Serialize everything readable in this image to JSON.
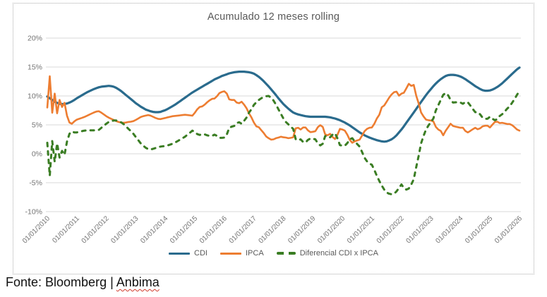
{
  "chart": {
    "title": "Acumulado 12 meses rolling"
  },
  "footer": {
    "prefix": "Fonte: Bloomberg | ",
    "flagged_word": "Anbima"
  },
  "colors": {
    "cdi": "#2A6B8D",
    "ipca": "#ED7D31",
    "diferencial": "#3A7D23",
    "gridline": "#D9D9D9",
    "axis_text": "#737373",
    "title_text": "#595959",
    "frame_dotted_border": "#ABABAB",
    "spellcheck_wavy": "#D03A2B"
  },
  "chart_data": {
    "type": "line",
    "title": "Acumulado 12 meses rolling",
    "xlabel": "",
    "ylabel": "",
    "ylim": [
      -10,
      20
    ],
    "grid": "horizontal",
    "legend_position": "bottom",
    "sampling": "monthly from 01/01/2010 to 01/01/2026",
    "y_tick_labels": [
      "20%",
      "15%",
      "10%",
      "5%",
      "0%",
      "-5%",
      "-10%"
    ],
    "y_tick_values": [
      20,
      15,
      10,
      5,
      0,
      -5,
      -10
    ],
    "x_tick_labels": [
      "01/01/2010",
      "01/01/2011",
      "01/01/2012",
      "01/01/2013",
      "01/01/2014",
      "01/01/2015",
      "01/01/2016",
      "01/01/2017",
      "01/01/2018",
      "01/01/2019",
      "01/01/2020",
      "01/01/2021",
      "01/01/2022",
      "01/01/2023",
      "01/01/2024",
      "01/01/2025",
      "01/01/2026"
    ],
    "series": [
      {
        "name": "CDI",
        "color": "#2A6B8D",
        "style": "solid",
        "values": [
          9.9,
          9.6,
          9.3,
          9.0,
          8.8,
          8.65,
          8.6,
          8.6,
          8.7,
          8.85,
          9.05,
          9.3,
          9.6,
          9.85,
          10.1,
          10.35,
          10.6,
          10.8,
          11.0,
          11.2,
          11.35,
          11.5,
          11.6,
          11.65,
          11.7,
          11.75,
          11.7,
          11.6,
          11.4,
          11.15,
          10.85,
          10.5,
          10.15,
          9.8,
          9.45,
          9.1,
          8.75,
          8.45,
          8.15,
          7.9,
          7.65,
          7.5,
          7.35,
          7.25,
          7.2,
          7.2,
          7.25,
          7.4,
          7.55,
          7.75,
          8.0,
          8.25,
          8.5,
          8.8,
          9.1,
          9.4,
          9.7,
          10.0,
          10.3,
          10.6,
          10.85,
          11.1,
          11.35,
          11.6,
          11.85,
          12.1,
          12.35,
          12.6,
          12.85,
          13.05,
          13.25,
          13.45,
          13.6,
          13.75,
          13.9,
          14.0,
          14.1,
          14.15,
          14.2,
          14.2,
          14.2,
          14.15,
          14.1,
          14.0,
          13.85,
          13.6,
          13.3,
          12.95,
          12.55,
          12.1,
          11.65,
          11.15,
          10.65,
          10.15,
          9.6,
          9.1,
          8.6,
          8.2,
          7.8,
          7.45,
          7.15,
          6.95,
          6.8,
          6.7,
          6.6,
          6.5,
          6.45,
          6.4,
          6.4,
          6.4,
          6.4,
          6.4,
          6.4,
          6.4,
          6.35,
          6.3,
          6.2,
          6.1,
          5.95,
          5.8,
          5.6,
          5.4,
          5.15,
          4.9,
          4.6,
          4.3,
          4.0,
          3.7,
          3.45,
          3.2,
          3.0,
          2.8,
          2.65,
          2.5,
          2.35,
          2.25,
          2.15,
          2.1,
          2.15,
          2.3,
          2.5,
          2.8,
          3.2,
          3.7,
          4.2,
          4.75,
          5.35,
          5.95,
          6.55,
          7.15,
          7.75,
          8.35,
          8.95,
          9.55,
          10.15,
          10.7,
          11.2,
          11.7,
          12.15,
          12.55,
          12.9,
          13.2,
          13.45,
          13.6,
          13.65,
          13.65,
          13.6,
          13.5,
          13.35,
          13.15,
          12.9,
          12.6,
          12.3,
          12.0,
          11.7,
          11.45,
          11.2,
          11.0,
          10.9,
          10.9,
          10.95,
          11.1,
          11.3,
          11.55,
          11.85,
          12.2,
          12.6,
          13.0,
          13.4,
          13.8,
          14.2,
          14.6,
          14.9
        ]
      },
      {
        "name": "IPCA",
        "color": "#ED7D31",
        "style": "solid",
        "values": [
          8.0,
          13.4,
          7.1,
          10.4,
          7.0,
          9.3,
          8.1,
          8.8,
          6.6,
          5.4,
          5.2,
          5.6,
          5.9,
          6.05,
          6.2,
          6.35,
          6.55,
          6.75,
          6.95,
          7.15,
          7.3,
          7.35,
          7.1,
          6.8,
          6.5,
          6.25,
          6.05,
          5.85,
          5.65,
          5.5,
          5.4,
          5.35,
          5.4,
          5.5,
          5.55,
          5.65,
          5.85,
          6.1,
          6.35,
          6.5,
          6.6,
          6.7,
          6.6,
          6.4,
          6.2,
          6.05,
          6.0,
          6.1,
          6.2,
          6.3,
          6.4,
          6.5,
          6.55,
          6.6,
          6.65,
          6.7,
          6.75,
          6.7,
          6.65,
          6.6,
          7.1,
          7.7,
          8.1,
          8.2,
          8.5,
          8.9,
          9.25,
          9.5,
          9.55,
          9.95,
          10.5,
          10.7,
          10.8,
          10.4,
          9.4,
          9.3,
          9.3,
          8.85,
          8.75,
          9.0,
          8.5,
          7.9,
          7.0,
          6.3,
          5.4,
          4.75,
          4.6,
          4.1,
          3.6,
          3.0,
          2.7,
          2.45,
          2.5,
          2.7,
          2.8,
          2.95,
          2.85,
          2.8,
          2.7,
          2.75,
          2.85,
          4.4,
          4.5,
          4.2,
          4.55,
          4.55,
          4.05,
          3.75,
          3.8,
          3.9,
          4.6,
          4.95,
          4.65,
          3.35,
          3.2,
          3.45,
          2.9,
          2.55,
          3.3,
          4.3,
          4.2,
          4.0,
          3.3,
          2.4,
          1.9,
          2.15,
          2.3,
          2.45,
          3.15,
          3.9,
          4.3,
          4.5,
          4.55,
          5.2,
          6.1,
          6.75,
          8.05,
          8.35,
          9.0,
          9.7,
          10.25,
          10.65,
          10.75,
          10.05,
          10.4,
          10.55,
          11.3,
          12.1,
          11.75,
          11.9,
          10.05,
          8.75,
          7.15,
          6.45,
          5.9,
          5.8,
          5.75,
          5.6,
          4.65,
          4.2,
          3.95,
          3.2,
          4.0,
          4.6,
          5.2,
          4.8,
          4.7,
          4.6,
          4.5,
          4.5,
          3.95,
          3.7,
          3.95,
          4.25,
          4.5,
          4.25,
          4.4,
          4.75,
          4.85,
          4.85,
          4.55,
          5.05,
          5.5,
          5.55,
          5.3,
          5.35,
          5.25,
          5.15,
          5.15,
          4.95,
          4.6,
          4.2,
          4.0
        ]
      },
      {
        "name": "Diferencial CDI x IPCA",
        "color": "#3A7D23",
        "style": "dashed",
        "values": [
          1.9,
          -3.8,
          2.2,
          -1.4,
          1.8,
          -0.65,
          0.5,
          -0.2,
          2.1,
          3.45,
          3.85,
          3.7,
          3.7,
          3.8,
          3.9,
          4.0,
          4.05,
          4.05,
          4.05,
          4.05,
          4.05,
          4.15,
          4.5,
          4.85,
          5.2,
          5.5,
          5.65,
          5.75,
          5.75,
          5.65,
          5.45,
          5.15,
          4.75,
          4.3,
          3.9,
          3.45,
          2.9,
          2.35,
          1.8,
          1.4,
          1.05,
          0.8,
          0.75,
          0.85,
          1.0,
          1.15,
          1.25,
          1.3,
          1.35,
          1.45,
          1.6,
          1.75,
          1.95,
          2.2,
          2.45,
          2.7,
          2.95,
          3.3,
          3.65,
          4.0,
          3.75,
          3.4,
          3.25,
          3.4,
          3.35,
          3.2,
          3.1,
          3.1,
          3.3,
          3.1,
          2.75,
          2.75,
          2.8,
          3.35,
          4.5,
          4.7,
          4.8,
          5.3,
          5.45,
          5.2,
          5.7,
          6.25,
          7.1,
          7.7,
          8.45,
          8.9,
          9.3,
          9.6,
          9.8,
          9.95,
          10.0,
          9.7,
          9.2,
          8.5,
          7.7,
          6.9,
          6.1,
          5.5,
          5.1,
          4.7,
          4.3,
          2.55,
          2.3,
          2.5,
          2.05,
          1.95,
          2.4,
          2.65,
          2.6,
          2.5,
          1.8,
          1.45,
          1.75,
          3.05,
          3.15,
          2.85,
          3.3,
          3.55,
          2.65,
          1.5,
          1.4,
          1.4,
          1.85,
          2.5,
          2.7,
          2.15,
          1.7,
          1.25,
          0.3,
          -0.7,
          -1.3,
          -1.7,
          -1.9,
          -2.8,
          -3.8,
          -4.7,
          -5.5,
          -6.2,
          -6.7,
          -6.9,
          -7.0,
          -6.9,
          -6.5,
          -5.9,
          -5.3,
          -5.9,
          -6.2,
          -6.0,
          -5.3,
          -4.4,
          -2.3,
          -0.4,
          1.8,
          3.1,
          4.2,
          4.9,
          5.5,
          6.1,
          7.5,
          8.4,
          9.3,
          10.2,
          10.5,
          10.1,
          9.3,
          8.85,
          8.9,
          8.9,
          8.85,
          8.65,
          8.95,
          8.9,
          8.35,
          7.75,
          7.2,
          7.2,
          6.8,
          6.25,
          6.05,
          6.05,
          6.4,
          6.05,
          5.8,
          6.0,
          6.55,
          6.85,
          7.3,
          7.8,
          8.2,
          8.8,
          9.45,
          10.2,
          10.85
        ]
      }
    ]
  }
}
